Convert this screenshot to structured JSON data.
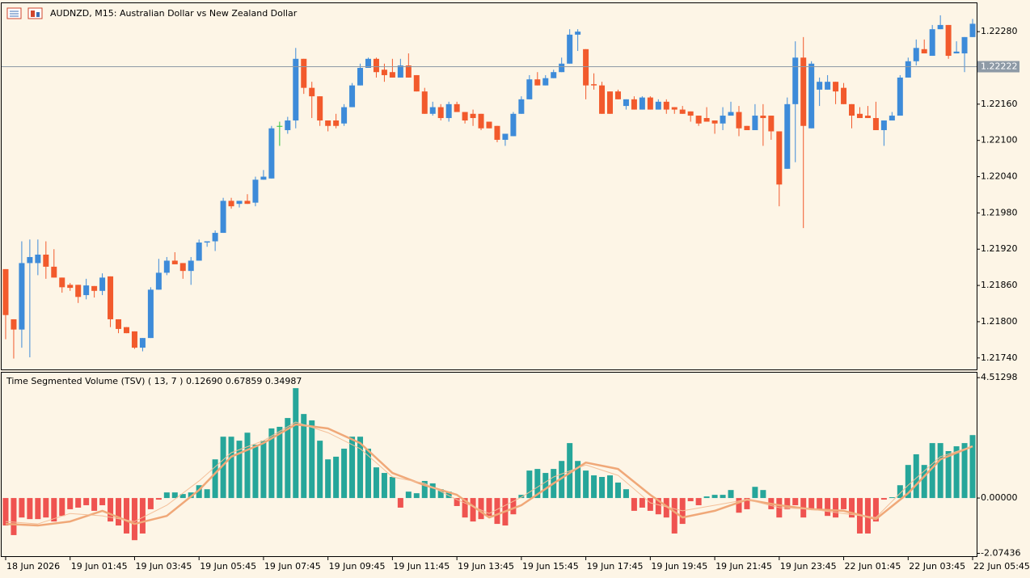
{
  "chart_data": [
    {
      "type": "candlestick",
      "title": "AUDNZD, M15:  Australian Dollar vs New Zealand Dollar",
      "up_color": "#3d8bd9",
      "down_color": "#f25a2c",
      "doji_color": "#2cc23a",
      "xlim": [
        -0.5,
        120.5
      ],
      "ylim": [
        1.21721,
        1.22327
      ],
      "yticks": [
        {
          "value": 1.2228,
          "label": "1.22280"
        },
        {
          "value": 1.2216,
          "label": "1.22160"
        },
        {
          "value": 1.221,
          "label": "1.22100"
        },
        {
          "value": 1.2204,
          "label": "1.22040"
        },
        {
          "value": 1.2198,
          "label": "1.21980"
        },
        {
          "value": 1.2192,
          "label": "1.21920"
        },
        {
          "value": 1.2186,
          "label": "1.21860"
        },
        {
          "value": 1.218,
          "label": "1.21800"
        },
        {
          "value": 1.2174,
          "label": "1.21740"
        }
      ],
      "current_price": 1.22222,
      "current_price_color": "#8e9aa6",
      "open": [
        1.21887,
        1.21804,
        1.21787,
        1.21897,
        1.21897,
        1.21911,
        1.21891,
        1.21873,
        1.21861,
        1.21861,
        1.21844,
        1.21859,
        1.21851,
        1.21875,
        1.21804,
        1.21791,
        1.21784,
        1.21757,
        1.21773,
        1.21853,
        1.21881,
        1.21901,
        1.21897,
        1.21884,
        1.21901,
        1.21931,
        1.21933,
        1.21947,
        1.22,
        1.21995,
        1.22,
        1.21997,
        1.22035,
        1.22037,
        1.22124,
        1.22117,
        1.22133,
        1.22235,
        1.22187,
        1.22173,
        1.22133,
        1.22133,
        1.22128,
        1.22155,
        1.22191,
        1.2222,
        1.22235,
        1.22217,
        1.22213,
        1.22204,
        1.22224,
        1.22208,
        1.22181,
        1.22144,
        1.22155,
        1.22137,
        1.2216,
        1.22147,
        1.22144,
        1.22144,
        1.22131,
        1.22124,
        1.22101,
        1.22107,
        1.22144,
        1.22168,
        1.22201,
        1.22191,
        1.22203,
        1.22213,
        1.22227,
        1.22275,
        1.22251,
        1.22193,
        1.22191,
        1.22181,
        1.22181,
        1.22157,
        1.22168,
        1.22151,
        1.22171,
        1.22151,
        1.22164,
        1.22155,
        1.22151,
        1.22148,
        1.22141,
        1.22137,
        1.22133,
        1.22128,
        1.22141,
        1.22147,
        1.22124,
        1.22117,
        1.22141,
        1.22141,
        1.22115,
        1.22053,
        1.2216,
        1.22237,
        1.2212,
        1.22184,
        1.22184,
        1.22197,
        1.22187,
        1.2216,
        1.22144,
        1.22141,
        1.22137,
        1.22117,
        1.22133,
        1.22141,
        1.22204,
        1.22231,
        1.22251,
        1.2224,
        1.22284,
        1.22291,
        1.22244,
        1.22244,
        1.22271
      ],
      "high": [
        1.21887,
        1.21804,
        1.21933,
        1.21936,
        1.21936,
        1.21933,
        1.2192,
        1.21873,
        1.21864,
        1.21861,
        1.21871,
        1.21859,
        1.2188,
        1.21875,
        1.21804,
        1.21791,
        1.21784,
        1.21773,
        1.21857,
        1.21904,
        1.21907,
        1.21915,
        1.21897,
        1.21907,
        1.21936,
        1.21933,
        1.21951,
        1.22005,
        1.22005,
        1.22,
        1.22011,
        1.2204,
        1.22051,
        1.22124,
        1.22131,
        1.22139,
        1.22253,
        1.22235,
        1.22197,
        1.22173,
        1.22133,
        1.22144,
        1.2216,
        1.22195,
        1.22227,
        1.22237,
        1.22237,
        1.22227,
        1.22235,
        1.22235,
        1.22244,
        1.22208,
        1.22187,
        1.22164,
        1.2216,
        1.22164,
        1.22164,
        1.22147,
        1.22151,
        1.22144,
        1.22131,
        1.22124,
        1.22111,
        1.22147,
        1.22173,
        1.22208,
        1.22213,
        1.22208,
        1.22217,
        1.22237,
        1.22284,
        1.22284,
        1.22251,
        1.22211,
        1.22197,
        1.22181,
        1.22184,
        1.22168,
        1.22173,
        1.22173,
        1.22173,
        1.22168,
        1.22168,
        1.22155,
        1.22157,
        1.22148,
        1.22141,
        1.22155,
        1.22133,
        1.22155,
        1.22164,
        1.22157,
        1.22124,
        1.2216,
        1.2216,
        1.22141,
        1.22115,
        1.22171,
        1.22264,
        1.22271,
        1.22231,
        1.22204,
        1.22208,
        1.22197,
        1.22195,
        1.2216,
        1.22155,
        1.22157,
        1.22164,
        1.22133,
        1.22147,
        1.22208,
        1.22237,
        1.22267,
        1.22267,
        1.22291,
        1.22307,
        1.22291,
        1.22264,
        1.22271,
        1.22301
      ],
      "low": [
        1.21771,
        1.21739,
        1.21757,
        1.21741,
        1.21877,
        1.21871,
        1.21873,
        1.21848,
        1.21851,
        1.21831,
        1.21837,
        1.2184,
        1.21844,
        1.21791,
        1.21781,
        1.21781,
        1.21755,
        1.21751,
        1.21773,
        1.21853,
        1.21877,
        1.21895,
        1.21871,
        1.21861,
        1.21901,
        1.21924,
        1.21917,
        1.21947,
        1.21987,
        1.21989,
        1.21995,
        1.21991,
        1.22035,
        1.22037,
        1.22091,
        1.22111,
        1.2212,
        1.22177,
        1.22137,
        1.22124,
        1.22115,
        1.2212,
        1.22124,
        1.22155,
        1.22191,
        1.2222,
        1.22204,
        1.22197,
        1.22204,
        1.22204,
        1.22204,
        1.22181,
        1.22144,
        1.22141,
        1.22133,
        1.22131,
        1.22147,
        1.22128,
        1.22124,
        1.22117,
        1.2212,
        1.22097,
        1.22091,
        1.22107,
        1.22144,
        1.22168,
        1.22191,
        1.22191,
        1.22203,
        1.22213,
        1.22227,
        1.22248,
        1.22168,
        1.22184,
        1.22144,
        1.22144,
        1.22168,
        1.22151,
        1.22151,
        1.22151,
        1.22151,
        1.22151,
        1.22144,
        1.22144,
        1.22144,
        1.22131,
        1.22124,
        1.22131,
        1.22111,
        1.22117,
        1.22141,
        1.22107,
        1.22117,
        1.22117,
        1.22091,
        1.22101,
        1.21991,
        1.22053,
        1.22064,
        1.21955,
        1.2212,
        1.22157,
        1.22184,
        1.2216,
        1.2216,
        1.2212,
        1.22137,
        1.22137,
        1.22117,
        1.22091,
        1.22133,
        1.22141,
        1.22204,
        1.22224,
        1.22244,
        1.2224,
        1.22284,
        1.22235,
        1.22244,
        1.22213,
        1.22271
      ],
      "close": [
        1.21811,
        1.21787,
        1.21897,
        1.21907,
        1.21911,
        1.21891,
        1.21873,
        1.21857,
        1.21856,
        1.21841,
        1.2186,
        1.21851,
        1.21873,
        1.21804,
        1.21788,
        1.21781,
        1.21757,
        1.21773,
        1.21853,
        1.21881,
        1.21901,
        1.21895,
        1.21884,
        1.21901,
        1.21931,
        1.21933,
        1.21947,
        1.22,
        1.21991,
        1.22,
        1.21995,
        1.22035,
        1.2204,
        1.2212,
        1.22124,
        1.22133,
        1.22235,
        1.22187,
        1.22173,
        1.22133,
        1.22124,
        1.22124,
        1.22155,
        1.22191,
        1.2222,
        1.22235,
        1.22213,
        1.22208,
        1.22204,
        1.22224,
        1.22204,
        1.22181,
        1.22144,
        1.22155,
        1.22137,
        1.2216,
        1.22147,
        1.22133,
        1.22137,
        1.2212,
        1.2212,
        1.22101,
        1.22111,
        1.22144,
        1.22168,
        1.22201,
        1.22191,
        1.22203,
        1.22213,
        1.22227,
        1.22275,
        1.2228,
        1.22191,
        1.22191,
        1.22144,
        1.22144,
        1.22168,
        1.22168,
        1.22151,
        1.22171,
        1.22151,
        1.22164,
        1.22151,
        1.22151,
        1.22144,
        1.22141,
        1.22128,
        1.22131,
        1.22128,
        1.22141,
        1.22147,
        1.2212,
        1.22117,
        1.22141,
        1.22137,
        1.22115,
        1.22027,
        1.2216,
        1.22237,
        1.22124,
        1.22227,
        1.22197,
        1.22197,
        1.22181,
        1.2216,
        1.22141,
        1.22137,
        1.22137,
        1.22117,
        1.22133,
        1.22141,
        1.22204,
        1.22231,
        1.22253,
        1.22244,
        1.22284,
        1.22291,
        1.2224,
        1.22247,
        1.22271,
        1.22293
      ]
    },
    {
      "type": "histogram_lines",
      "title": "Time Segmented Volume (TSV) ( 13, 7 ) 0.12690 0.67859 0.34987",
      "pos_color": "#26a69a",
      "neg_color": "#ef5350",
      "xlim": [
        -0.5,
        120.5
      ],
      "ylim": [
        -2.18,
        4.7
      ],
      "yticks": [
        4.51298,
        {
          "value": 0,
          "label": "0.00000"
        },
        -2.07436
      ],
      "xticks": [
        {
          "value": 0,
          "label": "18 Jun 2026"
        },
        {
          "value": 8,
          "label": "19 Jun 01:45"
        },
        {
          "value": 16,
          "label": "19 Jun 03:45"
        },
        {
          "value": 24,
          "label": "19 Jun 05:45"
        },
        {
          "value": 32,
          "label": "19 Jun 07:45"
        },
        {
          "value": 40,
          "label": "19 Jun 09:45"
        },
        {
          "value": 48,
          "label": "19 Jun 11:45"
        },
        {
          "value": 56,
          "label": "19 Jun 13:45"
        },
        {
          "value": 64,
          "label": "19 Jun 15:45"
        },
        {
          "value": 72,
          "label": "19 Jun 17:45"
        },
        {
          "value": 80,
          "label": "19 Jun 19:45"
        },
        {
          "value": 88,
          "label": "19 Jun 21:45"
        },
        {
          "value": 96,
          "label": "19 Jun 23:45"
        },
        {
          "value": 104,
          "label": "22 Jun 01:45"
        },
        {
          "value": 112,
          "label": "22 Jun 03:45"
        },
        {
          "value": 120,
          "label": "22 Jun 05:45"
        }
      ],
      "values": [
        -1.03,
        -1.39,
        -0.73,
        -0.79,
        -0.79,
        -0.73,
        -0.88,
        -0.67,
        -0.42,
        -0.36,
        -0.27,
        -0.48,
        -0.27,
        -0.88,
        -1.03,
        -1.33,
        -1.58,
        -1.33,
        -0.42,
        -0.06,
        0.21,
        0.21,
        0.15,
        0.21,
        0.48,
        0.33,
        1.45,
        2.3,
        2.3,
        2.15,
        2.45,
        2.0,
        2.15,
        2.61,
        2.67,
        3.0,
        4.12,
        3.15,
        2.91,
        2.15,
        1.45,
        1.55,
        1.85,
        2.3,
        2.3,
        1.85,
        1.15,
        0.94,
        0.79,
        -0.36,
        0.24,
        0.18,
        0.64,
        0.55,
        0.33,
        0.24,
        -0.3,
        -0.73,
        -0.88,
        -0.79,
        -0.67,
        -0.97,
        -1.03,
        -0.61,
        0.12,
        1.03,
        1.09,
        0.94,
        1.09,
        1.39,
        2.06,
        1.39,
        1.03,
        0.85,
        0.79,
        0.85,
        0.58,
        0.33,
        -0.48,
        -0.36,
        -0.48,
        -0.61,
        -0.73,
        -1.33,
        -0.97,
        -0.12,
        -0.27,
        0.06,
        0.12,
        0.12,
        0.3,
        -0.55,
        -0.42,
        0.42,
        0.3,
        -0.42,
        -0.73,
        -0.42,
        -0.27,
        -0.73,
        -0.42,
        -0.42,
        -0.67,
        -0.73,
        -0.42,
        -0.73,
        -1.33,
        -1.33,
        -0.88,
        -0.06,
        0.03,
        0.48,
        1.24,
        1.64,
        1.24,
        2.06,
        2.06,
        1.76,
        1.94,
        2.06,
        2.36
      ],
      "lines": [
        {
          "color": "#f0a878",
          "width": 2.5,
          "x": [
            0,
            4,
            8,
            12,
            16,
            20,
            24,
            28,
            32,
            36,
            40,
            44,
            48,
            52,
            56,
            60,
            64,
            68,
            72,
            76,
            80,
            84,
            88,
            92,
            96,
            100,
            104,
            108,
            112,
            116,
            120
          ],
          "values": [
            -0.97,
            -1.03,
            -0.88,
            -0.48,
            -0.97,
            -0.67,
            0.3,
            1.55,
            2.06,
            2.76,
            2.61,
            2.06,
            0.94,
            0.48,
            0.12,
            -0.73,
            -0.27,
            0.55,
            1.33,
            1.09,
            0.12,
            -0.73,
            -0.48,
            -0.06,
            -0.27,
            -0.42,
            -0.48,
            -0.79,
            0.18,
            1.45,
            1.94
          ]
        },
        {
          "color": "#f4bf98",
          "width": 1,
          "x": [
            0,
            4,
            8,
            12,
            16,
            20,
            24,
            28,
            32,
            36,
            40,
            44,
            48,
            52,
            56,
            60,
            64,
            68,
            72,
            76,
            80,
            84,
            88,
            92,
            96,
            100,
            104,
            108,
            112,
            116,
            120
          ],
          "values": [
            -0.88,
            -0.97,
            -0.58,
            -0.67,
            -0.88,
            -0.27,
            0.64,
            1.7,
            2.15,
            2.85,
            2.45,
            1.85,
            0.79,
            0.55,
            -0.06,
            -0.58,
            0.03,
            0.79,
            1.24,
            0.85,
            -0.18,
            -0.48,
            -0.27,
            -0.06,
            -0.36,
            -0.42,
            -0.58,
            -0.73,
            0.48,
            1.55,
            1.94
          ]
        }
      ]
    }
  ]
}
